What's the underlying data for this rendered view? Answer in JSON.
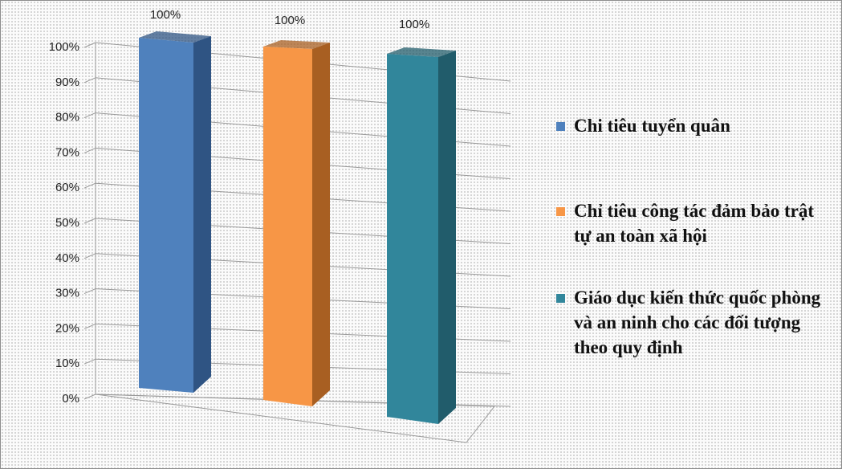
{
  "chart_data": {
    "type": "bar3d",
    "categories": [
      null
    ],
    "series": [
      {
        "name": "Chi tiêu tuyển quân",
        "color": "#4f81bd",
        "side_color": "#2f5483",
        "values": [
          100
        ],
        "value_labels": [
          "100%"
        ]
      },
      {
        "name": "Chỉ tiêu công tác đảm bảo trật tự an toàn xã hội",
        "color": "#f79646",
        "side_color": "#a85f22",
        "values": [
          100
        ],
        "value_labels": [
          "100%"
        ]
      },
      {
        "name": "Giáo dục kiến thức quốc phòng và an ninh cho các đối tượng theo quy định",
        "color": "#31869b",
        "side_color": "#215c6b",
        "values": [
          100
        ],
        "value_labels": [
          "100%"
        ]
      }
    ],
    "ylim": [
      0,
      100
    ],
    "yticks": [
      {
        "value": 0,
        "label": "0%"
      },
      {
        "value": 10,
        "label": "10%"
      },
      {
        "value": 20,
        "label": "20%"
      },
      {
        "value": 30,
        "label": "30%"
      },
      {
        "value": 40,
        "label": "40%"
      },
      {
        "value": 50,
        "label": "50%"
      },
      {
        "value": 60,
        "label": "60%"
      },
      {
        "value": 70,
        "label": "70%"
      },
      {
        "value": 80,
        "label": "80%"
      },
      {
        "value": 90,
        "label": "90%"
      },
      {
        "value": 100,
        "label": "100%"
      }
    ],
    "grid": true,
    "legend": "right"
  }
}
